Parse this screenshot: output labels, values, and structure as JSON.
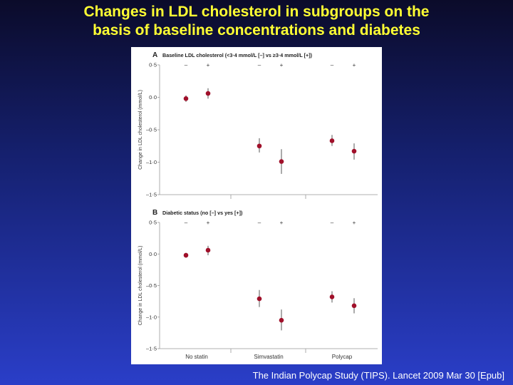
{
  "slide": {
    "title_line1": "Changes in LDL cholesterol in subgroups on the",
    "title_line2": "basis of baseline concentrations and diabetes",
    "citation": "The Indian Polycap Study (TIPS). Lancet 2009 Mar 30 [Epub]"
  },
  "colors": {
    "marker": "#a0102a",
    "axis": "#999999",
    "title": "#ffff33"
  },
  "chart_data": [
    {
      "type": "scatter",
      "panel_letter": "A",
      "title": "Baseline LDL cholesterol (<3·4 mmol/L [–] vs ≥3·4 mmol/L [+])",
      "ylabel": "Change in LDL cholesterol (mmol/L)",
      "ylim": [
        -1.5,
        0.5
      ],
      "yticks": [
        0.5,
        0.0,
        -0.5,
        -1.0,
        -1.5
      ],
      "ytick_labels": [
        "0·5",
        "0·0",
        "–0·5",
        "–1·0",
        "–1·5"
      ],
      "groups": [
        "No statin",
        "Simvastatin",
        "Polycap"
      ],
      "subgroup_labels": [
        "–",
        "+"
      ],
      "points": [
        {
          "group": "No statin",
          "subgroup": "–",
          "y": -0.02,
          "lo": -0.07,
          "hi": 0.03
        },
        {
          "group": "No statin",
          "subgroup": "+",
          "y": 0.06,
          "lo": -0.02,
          "hi": 0.14
        },
        {
          "group": "Simvastatin",
          "subgroup": "–",
          "y": -0.75,
          "lo": -0.85,
          "hi": -0.63
        },
        {
          "group": "Simvastatin",
          "subgroup": "+",
          "y": -0.99,
          "lo": -1.18,
          "hi": -0.8
        },
        {
          "group": "Polycap",
          "subgroup": "–",
          "y": -0.67,
          "lo": -0.75,
          "hi": -0.58
        },
        {
          "group": "Polycap",
          "subgroup": "+",
          "y": -0.83,
          "lo": -0.96,
          "hi": -0.71
        }
      ],
      "show_xlabels": false
    },
    {
      "type": "scatter",
      "panel_letter": "B",
      "title": "Diabetic status (no [–] vs yes [+])",
      "ylabel": "Change in LDL cholesterol (mmol/L)",
      "ylim": [
        -1.5,
        0.5
      ],
      "yticks": [
        0.5,
        0.0,
        -0.5,
        -1.0,
        -1.5
      ],
      "ytick_labels": [
        "0·5",
        "0·0",
        "–0·5",
        "–1·0",
        "–1·5"
      ],
      "groups": [
        "No statin",
        "Simvastatin",
        "Polycap"
      ],
      "subgroup_labels": [
        "–",
        "+"
      ],
      "points": [
        {
          "group": "No statin",
          "subgroup": "–",
          "y": -0.02,
          "lo": -0.06,
          "hi": 0.02
        },
        {
          "group": "No statin",
          "subgroup": "+",
          "y": 0.06,
          "lo": -0.02,
          "hi": 0.13
        },
        {
          "group": "Simvastatin",
          "subgroup": "–",
          "y": -0.71,
          "lo": -0.84,
          "hi": -0.57
        },
        {
          "group": "Simvastatin",
          "subgroup": "+",
          "y": -1.05,
          "lo": -1.21,
          "hi": -0.88
        },
        {
          "group": "Polycap",
          "subgroup": "–",
          "y": -0.68,
          "lo": -0.77,
          "hi": -0.59
        },
        {
          "group": "Polycap",
          "subgroup": "+",
          "y": -0.82,
          "lo": -0.94,
          "hi": -0.7
        }
      ],
      "show_xlabels": true
    }
  ]
}
